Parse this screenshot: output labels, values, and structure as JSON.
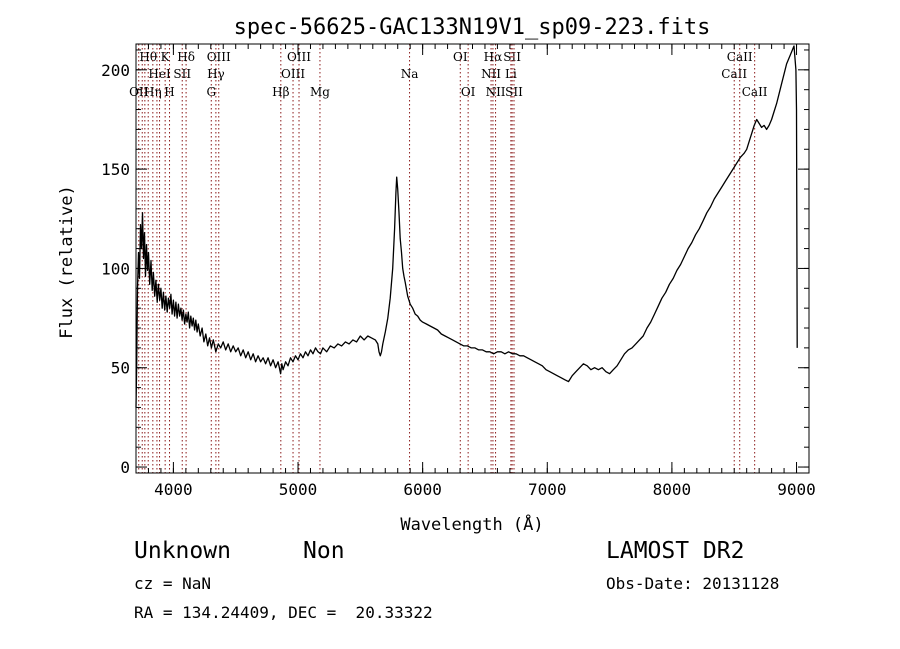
{
  "chart_data": {
    "type": "line",
    "title": "spec-56625-GAC133N19V1_sp09-223.fits",
    "xlabel": "Wavelength (Å)",
    "ylabel": "Flux (relative)",
    "xlim": [
      3700,
      9100
    ],
    "ylim": [
      -3,
      213
    ],
    "x_ticks": [
      4000,
      5000,
      6000,
      7000,
      8000,
      9000
    ],
    "y_ticks": [
      0,
      50,
      100,
      150,
      200
    ],
    "x_minor_step": 100,
    "y_minor_step": 10,
    "grid": false,
    "line_color": "#000000",
    "marker_color": "#8b1a1a",
    "series": [
      {
        "values": [
          [
            3700,
            30
          ],
          [
            3706,
            52
          ],
          [
            3712,
            90
          ],
          [
            3720,
            108
          ],
          [
            3728,
            95
          ],
          [
            3736,
            122
          ],
          [
            3744,
            110
          ],
          [
            3752,
            128
          ],
          [
            3760,
            105
          ],
          [
            3768,
            118
          ],
          [
            3776,
            96
          ],
          [
            3784,
            112
          ],
          [
            3792,
            99
          ],
          [
            3800,
            108
          ],
          [
            3810,
            92
          ],
          [
            3820,
            104
          ],
          [
            3830,
            89
          ],
          [
            3840,
            98
          ],
          [
            3850,
            86
          ],
          [
            3860,
            94
          ],
          [
            3870,
            83
          ],
          [
            3880,
            92
          ],
          [
            3890,
            84
          ],
          [
            3900,
            90
          ],
          [
            3910,
            80
          ],
          [
            3920,
            88
          ],
          [
            3930,
            79
          ],
          [
            3940,
            86
          ],
          [
            3950,
            78
          ],
          [
            3960,
            85
          ],
          [
            3970,
            80
          ],
          [
            3980,
            87
          ],
          [
            3990,
            77
          ],
          [
            4000,
            84
          ],
          [
            4010,
            76
          ],
          [
            4020,
            83
          ],
          [
            4030,
            75
          ],
          [
            4040,
            82
          ],
          [
            4050,
            76
          ],
          [
            4060,
            80
          ],
          [
            4070,
            74
          ],
          [
            4080,
            79
          ],
          [
            4090,
            72
          ],
          [
            4100,
            77
          ],
          [
            4110,
            73
          ],
          [
            4120,
            78
          ],
          [
            4130,
            70
          ],
          [
            4140,
            76
          ],
          [
            4150,
            71
          ],
          [
            4160,
            75
          ],
          [
            4170,
            69
          ],
          [
            4180,
            74
          ],
          [
            4190,
            68
          ],
          [
            4200,
            72
          ],
          [
            4215,
            66
          ],
          [
            4230,
            70
          ],
          [
            4245,
            63
          ],
          [
            4260,
            67
          ],
          [
            4275,
            61
          ],
          [
            4290,
            65
          ],
          [
            4305,
            60
          ],
          [
            4320,
            64
          ],
          [
            4340,
            58
          ],
          [
            4360,
            62
          ],
          [
            4380,
            60
          ],
          [
            4400,
            63
          ],
          [
            4420,
            59
          ],
          [
            4440,
            62
          ],
          [
            4460,
            58
          ],
          [
            4480,
            61
          ],
          [
            4500,
            58
          ],
          [
            4520,
            60
          ],
          [
            4540,
            56
          ],
          [
            4560,
            59
          ],
          [
            4580,
            55
          ],
          [
            4600,
            58
          ],
          [
            4620,
            54
          ],
          [
            4640,
            57
          ],
          [
            4660,
            53
          ],
          [
            4680,
            56
          ],
          [
            4700,
            53
          ],
          [
            4720,
            55
          ],
          [
            4740,
            52
          ],
          [
            4760,
            55
          ],
          [
            4780,
            51
          ],
          [
            4800,
            54
          ],
          [
            4820,
            50
          ],
          [
            4840,
            53
          ],
          [
            4860,
            47
          ],
          [
            4870,
            52
          ],
          [
            4880,
            49
          ],
          [
            4900,
            53
          ],
          [
            4920,
            51
          ],
          [
            4940,
            55
          ],
          [
            4960,
            53
          ],
          [
            4980,
            56
          ],
          [
            5000,
            54
          ],
          [
            5020,
            57
          ],
          [
            5040,
            55
          ],
          [
            5060,
            58
          ],
          [
            5080,
            56
          ],
          [
            5100,
            59
          ],
          [
            5120,
            57
          ],
          [
            5140,
            60
          ],
          [
            5160,
            58
          ],
          [
            5180,
            57
          ],
          [
            5200,
            60
          ],
          [
            5230,
            58
          ],
          [
            5260,
            61
          ],
          [
            5290,
            60
          ],
          [
            5320,
            62
          ],
          [
            5350,
            61
          ],
          [
            5380,
            63
          ],
          [
            5410,
            62
          ],
          [
            5440,
            64
          ],
          [
            5470,
            63
          ],
          [
            5500,
            66
          ],
          [
            5530,
            64
          ],
          [
            5560,
            66
          ],
          [
            5590,
            65
          ],
          [
            5620,
            64
          ],
          [
            5640,
            62
          ],
          [
            5650,
            58
          ],
          [
            5660,
            56
          ],
          [
            5670,
            58
          ],
          [
            5680,
            62
          ],
          [
            5700,
            68
          ],
          [
            5720,
            75
          ],
          [
            5740,
            85
          ],
          [
            5760,
            100
          ],
          [
            5775,
            120
          ],
          [
            5785,
            138
          ],
          [
            5792,
            146
          ],
          [
            5800,
            140
          ],
          [
            5810,
            128
          ],
          [
            5820,
            115
          ],
          [
            5830,
            108
          ],
          [
            5840,
            100
          ],
          [
            5850,
            96
          ],
          [
            5860,
            93
          ],
          [
            5880,
            86
          ],
          [
            5900,
            82
          ],
          [
            5920,
            80
          ],
          [
            5940,
            77
          ],
          [
            5960,
            76
          ],
          [
            5980,
            74
          ],
          [
            6000,
            73
          ],
          [
            6030,
            72
          ],
          [
            6060,
            71
          ],
          [
            6090,
            70
          ],
          [
            6120,
            69
          ],
          [
            6150,
            67
          ],
          [
            6180,
            66
          ],
          [
            6210,
            65
          ],
          [
            6240,
            64
          ],
          [
            6270,
            63
          ],
          [
            6300,
            62
          ],
          [
            6330,
            61
          ],
          [
            6360,
            61
          ],
          [
            6390,
            60
          ],
          [
            6420,
            60
          ],
          [
            6450,
            59
          ],
          [
            6480,
            59
          ],
          [
            6510,
            58
          ],
          [
            6540,
            58
          ],
          [
            6570,
            57
          ],
          [
            6600,
            58
          ],
          [
            6630,
            58
          ],
          [
            6660,
            57
          ],
          [
            6690,
            58
          ],
          [
            6720,
            57
          ],
          [
            6750,
            57
          ],
          [
            6780,
            56
          ],
          [
            6810,
            56
          ],
          [
            6840,
            55
          ],
          [
            6870,
            54
          ],
          [
            6900,
            53
          ],
          [
            6930,
            52
          ],
          [
            6960,
            51
          ],
          [
            6990,
            49
          ],
          [
            7020,
            48
          ],
          [
            7050,
            47
          ],
          [
            7080,
            46
          ],
          [
            7110,
            45
          ],
          [
            7140,
            44
          ],
          [
            7170,
            43
          ],
          [
            7200,
            46
          ],
          [
            7230,
            48
          ],
          [
            7260,
            50
          ],
          [
            7290,
            52
          ],
          [
            7320,
            51
          ],
          [
            7350,
            49
          ],
          [
            7380,
            50
          ],
          [
            7410,
            49
          ],
          [
            7440,
            50
          ],
          [
            7470,
            48
          ],
          [
            7500,
            47
          ],
          [
            7530,
            49
          ],
          [
            7560,
            51
          ],
          [
            7590,
            54
          ],
          [
            7620,
            57
          ],
          [
            7650,
            59
          ],
          [
            7680,
            60
          ],
          [
            7710,
            62
          ],
          [
            7740,
            64
          ],
          [
            7770,
            66
          ],
          [
            7800,
            70
          ],
          [
            7830,
            73
          ],
          [
            7860,
            77
          ],
          [
            7890,
            81
          ],
          [
            7920,
            85
          ],
          [
            7950,
            88
          ],
          [
            7980,
            92
          ],
          [
            8010,
            95
          ],
          [
            8040,
            99
          ],
          [
            8070,
            102
          ],
          [
            8100,
            106
          ],
          [
            8130,
            110
          ],
          [
            8160,
            113
          ],
          [
            8190,
            117
          ],
          [
            8220,
            120
          ],
          [
            8250,
            124
          ],
          [
            8280,
            128
          ],
          [
            8310,
            131
          ],
          [
            8340,
            135
          ],
          [
            8370,
            138
          ],
          [
            8400,
            141
          ],
          [
            8430,
            144
          ],
          [
            8460,
            147
          ],
          [
            8490,
            150
          ],
          [
            8520,
            153
          ],
          [
            8550,
            156
          ],
          [
            8580,
            158
          ],
          [
            8600,
            160
          ],
          [
            8620,
            164
          ],
          [
            8640,
            168
          ],
          [
            8660,
            172
          ],
          [
            8680,
            175
          ],
          [
            8700,
            173
          ],
          [
            8720,
            171
          ],
          [
            8740,
            172
          ],
          [
            8760,
            170
          ],
          [
            8780,
            172
          ],
          [
            8800,
            175
          ],
          [
            8820,
            179
          ],
          [
            8840,
            183
          ],
          [
            8860,
            188
          ],
          [
            8880,
            193
          ],
          [
            8900,
            198
          ],
          [
            8920,
            203
          ],
          [
            8940,
            206
          ],
          [
            8960,
            209
          ],
          [
            8980,
            212
          ],
          [
            8995,
            200
          ],
          [
            9000,
            180
          ],
          [
            9005,
            60
          ]
        ]
      }
    ],
    "line_markers": [
      {
        "wl": 3722,
        "label": "OII",
        "row": 3
      },
      {
        "wl": 3750,
        "label": "",
        "row": 0
      },
      {
        "wl": 3771,
        "label": "",
        "row": 0
      },
      {
        "wl": 3798,
        "label": "Hθ",
        "row": 1
      },
      {
        "wl": 3835,
        "label": "Hη",
        "row": 3
      },
      {
        "wl": 3868,
        "label": "",
        "row": 0
      },
      {
        "wl": 3889,
        "label": "HeI",
        "row": 2
      },
      {
        "wl": 3934,
        "label": "K",
        "row": 1
      },
      {
        "wl": 3969,
        "label": "H",
        "row": 3
      },
      {
        "wl": 4071,
        "label": "SII",
        "row": 2
      },
      {
        "wl": 4102,
        "label": "Hδ",
        "row": 1
      },
      {
        "wl": 4304,
        "label": "G",
        "row": 3
      },
      {
        "wl": 4341,
        "label": "Hγ",
        "row": 2
      },
      {
        "wl": 4364,
        "label": "OIII",
        "row": 1
      },
      {
        "wl": 4862,
        "label": "Hβ",
        "row": 3
      },
      {
        "wl": 4960,
        "label": "OIII",
        "row": 2
      },
      {
        "wl": 5008,
        "label": "OIII",
        "row": 1
      },
      {
        "wl": 5176,
        "label": "Mg",
        "row": 3
      },
      {
        "wl": 5895,
        "label": "Na",
        "row": 2
      },
      {
        "wl": 6302,
        "label": "OI",
        "row": 1
      },
      {
        "wl": 6365,
        "label": "OI",
        "row": 3
      },
      {
        "wl": 6549,
        "label": "NII",
        "row": 2
      },
      {
        "wl": 6564,
        "label": "Hα",
        "row": 1
      },
      {
        "wl": 6585,
        "label": "NII",
        "row": 3
      },
      {
        "wl": 6708,
        "label": "Li",
        "row": 2
      },
      {
        "wl": 6718,
        "label": "SII",
        "row": 1
      },
      {
        "wl": 6733,
        "label": "SII",
        "row": 3
      },
      {
        "wl": 8500,
        "label": "CaII",
        "row": 2
      },
      {
        "wl": 8544,
        "label": "CaII",
        "row": 1
      },
      {
        "wl": 8664,
        "label": "CaII",
        "row": 3
      }
    ]
  },
  "info": {
    "object_class": "Unknown",
    "subclass": "Non",
    "survey": "LAMOST DR2",
    "redshift": "cz = NaN",
    "obs_date": "Obs-Date: 20131128",
    "coords": "RA = 134.24409, DEC =  20.33322"
  }
}
